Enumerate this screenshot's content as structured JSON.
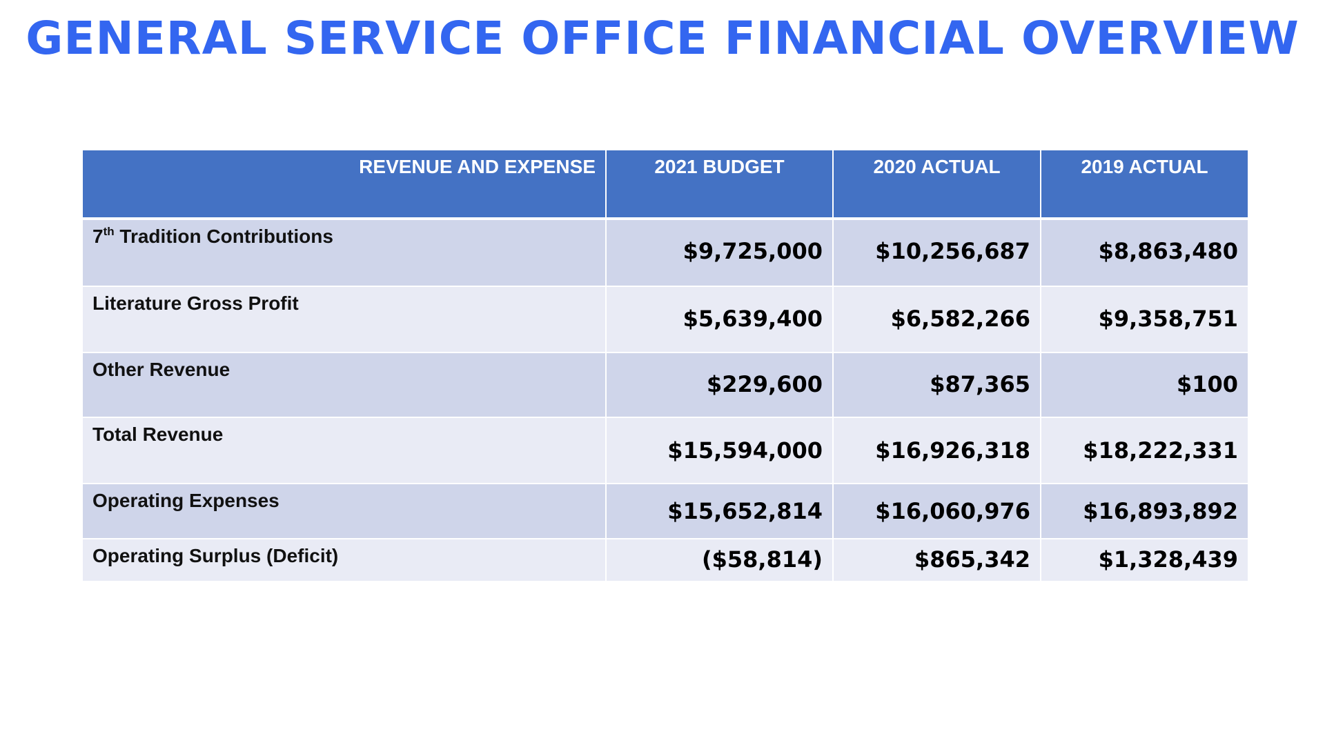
{
  "title": "GENERAL SERVICE OFFICE FINANCIAL OVERVIEW",
  "table": {
    "headers": [
      "REVENUE AND EXPENSE",
      "2021 BUDGET",
      "2020 ACTUAL",
      "2019 ACTUAL"
    ],
    "rows": [
      {
        "label_prefix": "7",
        "label_sup": "th",
        "label": " Tradition Contributions",
        "values": [
          "$9,725,000",
          "$10,256,687",
          "$8,863,480"
        ]
      },
      {
        "label": "Literature Gross Profit",
        "values": [
          "$5,639,400",
          "$6,582,266",
          "$9,358,751"
        ]
      },
      {
        "label": "Other Revenue",
        "values": [
          "$229,600",
          "$87,365",
          "$100"
        ]
      },
      {
        "label": "Total Revenue",
        "values": [
          "$15,594,000",
          "$16,926,318",
          "$18,222,331"
        ]
      },
      {
        "label": "Operating Expenses",
        "values": [
          "$15,652,814",
          "$16,060,976",
          "$16,893,892"
        ]
      },
      {
        "label": "Operating Surplus (Deficit)",
        "values": [
          "($58,814)",
          "$865,342",
          "$1,328,439"
        ]
      }
    ]
  },
  "colors": {
    "title": "#3366f0",
    "header_bg": "#4472c4",
    "row_odd_bg": "#cfd5ea",
    "row_even_bg": "#e9ebf5"
  }
}
